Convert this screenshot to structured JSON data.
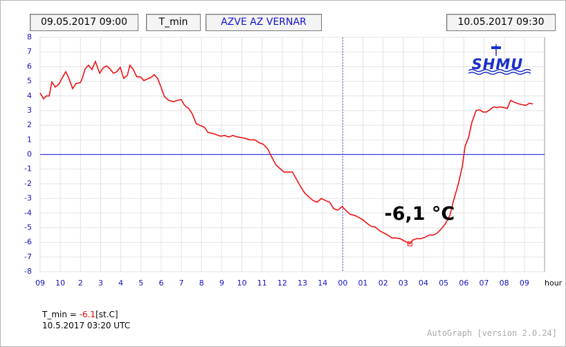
{
  "chart_data": {
    "type": "line",
    "header": {
      "start": "09.05.2017 09:00",
      "variable": "T_min",
      "station": "AZVE AZ VERNAR",
      "end": "10.05.2017 09:30"
    },
    "logo": "SHMU",
    "x_label": "hour",
    "xlim": [
      0,
      25
    ],
    "ylim": [
      -8,
      8
    ],
    "xticks": [
      {
        "value": 0,
        "label": "09"
      },
      {
        "value": 1,
        "label": "10"
      },
      2,
      3,
      4,
      5,
      6,
      7,
      8,
      9,
      10,
      11,
      12,
      13,
      14,
      {
        "value": 15,
        "label": "00"
      },
      {
        "value": 16,
        "label": "01"
      },
      {
        "value": 17,
        "label": "02"
      },
      {
        "value": 18,
        "label": "03"
      },
      {
        "value": 19,
        "label": "04"
      },
      {
        "value": 20,
        "label": "05"
      },
      {
        "value": 21,
        "label": "06"
      },
      {
        "value": 22,
        "label": "07"
      },
      {
        "value": 23,
        "label": "08"
      },
      {
        "value": 24,
        "label": "09"
      }
    ],
    "yticks": [
      -8,
      -7,
      -6,
      -5,
      -4,
      -3,
      -2,
      -1,
      0,
      1,
      2,
      3,
      4,
      5,
      6,
      7,
      8
    ],
    "grid": true,
    "zero_line_color": "#3a3ae0",
    "vline": {
      "x": 15,
      "color": "#5050d0"
    },
    "x": [
      0,
      0.17,
      0.31,
      0.45,
      0.58,
      0.75,
      0.93,
      1.1,
      1.27,
      1.4,
      1.61,
      1.78,
      1.99,
      2.09,
      2.23,
      2.4,
      2.57,
      2.74,
      2.95,
      3.12,
      3.29,
      3.46,
      3.63,
      3.8,
      3.97,
      4.14,
      4.32,
      4.45,
      4.62,
      4.79,
      4.97,
      5.14,
      5.31,
      5.48,
      5.65,
      5.82,
      5.99,
      6.16,
      6.37,
      6.61,
      6.82,
      6.99,
      7.16,
      7.36,
      7.53,
      7.74,
      7.98,
      8.15,
      8.32,
      8.53,
      8.73,
      8.94,
      9.14,
      9.35,
      9.55,
      9.76,
      9.97,
      10.17,
      10.38,
      10.65,
      10.86,
      11.06,
      11.27,
      11.47,
      11.68,
      11.88,
      12.09,
      12.29,
      12.5,
      12.71,
      12.91,
      13.12,
      13.32,
      13.53,
      13.73,
      13.94,
      14.14,
      14.35,
      14.55,
      14.76,
      14.97,
      15.17,
      15.38,
      15.58,
      15.79,
      15.99,
      16.2,
      16.4,
      16.61,
      16.82,
      17.02,
      17.23,
      17.43,
      17.64,
      17.84,
      18.05,
      18.33,
      18.46,
      18.66,
      18.87,
      19.08,
      19.28,
      19.49,
      19.69,
      19.9,
      20.1,
      20.31,
      20.51,
      20.72,
      20.92,
      21.06,
      21.23,
      21.4,
      21.61,
      21.78,
      21.95,
      22.12,
      22.29,
      22.47,
      22.64,
      22.81,
      22.98,
      23.15,
      23.32,
      23.53,
      23.73,
      23.9,
      24.08,
      24.25,
      24.42
    ],
    "series": [
      {
        "name": "T_min",
        "color": "#ee1111",
        "values": [
          4.2,
          3.8,
          4.0,
          4.0,
          4.95,
          4.6,
          4.8,
          5.25,
          5.65,
          5.3,
          4.5,
          4.85,
          4.9,
          5.2,
          5.85,
          6.1,
          5.8,
          6.35,
          5.55,
          5.9,
          6.05,
          5.85,
          5.55,
          5.65,
          5.95,
          5.2,
          5.4,
          6.1,
          5.8,
          5.3,
          5.3,
          5.05,
          5.15,
          5.25,
          5.45,
          5.2,
          4.6,
          3.95,
          3.7,
          3.6,
          3.7,
          3.75,
          3.35,
          3.15,
          2.8,
          2.1,
          1.95,
          1.85,
          1.5,
          1.45,
          1.35,
          1.25,
          1.3,
          1.2,
          1.3,
          1.2,
          1.15,
          1.1,
          1.0,
          1.0,
          0.8,
          0.7,
          0.4,
          -0.15,
          -0.7,
          -0.95,
          -1.2,
          -1.2,
          -1.2,
          -1.7,
          -2.2,
          -2.65,
          -2.9,
          -3.15,
          -3.25,
          -3.0,
          -3.15,
          -3.25,
          -3.7,
          -3.8,
          -3.55,
          -3.85,
          -4.1,
          -4.15,
          -4.3,
          -4.45,
          -4.7,
          -4.9,
          -4.95,
          -5.2,
          -5.35,
          -5.5,
          -5.7,
          -5.7,
          -5.75,
          -5.9,
          -6.1,
          -5.85,
          -5.75,
          -5.75,
          -5.65,
          -5.5,
          -5.5,
          -5.35,
          -5.05,
          -4.7,
          -4.15,
          -3.05,
          -2.05,
          -0.85,
          0.55,
          1.15,
          2.2,
          3.0,
          3.05,
          2.9,
          2.9,
          3.05,
          3.25,
          3.2,
          3.25,
          3.2,
          3.15,
          3.7,
          3.55,
          3.45,
          3.4,
          3.35,
          3.5,
          3.45
        ]
      }
    ],
    "annotation": {
      "text": "-6,1 °C",
      "x": 18.33,
      "y": -6.1
    },
    "summary": {
      "label": "T_min =",
      "value": -6.1,
      "unit": "[st.C]",
      "time": "10.5.2017 03:20 UTC"
    },
    "version": "AutoGraph [version 2.0.24]"
  }
}
